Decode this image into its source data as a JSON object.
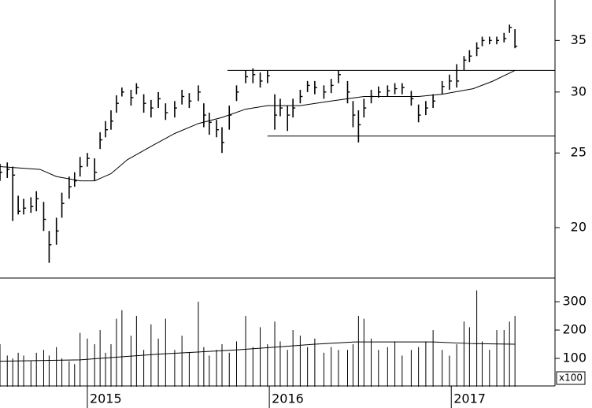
{
  "chart_data": {
    "type": "ohlc",
    "x": [
      2014.52,
      2014.56,
      2014.59,
      2014.62,
      2014.65,
      2014.69,
      2014.72,
      2014.76,
      2014.79,
      2014.83,
      2014.86,
      2014.9,
      2014.93,
      2014.96,
      2015.0,
      2015.04,
      2015.07,
      2015.1,
      2015.13,
      2015.16,
      2015.19,
      2015.24,
      2015.27,
      2015.31,
      2015.35,
      2015.39,
      2015.43,
      2015.48,
      2015.52,
      2015.56,
      2015.61,
      2015.64,
      2015.67,
      2015.71,
      2015.74,
      2015.78,
      2015.82,
      2015.87,
      2015.91,
      2015.95,
      2015.99,
      2016.03,
      2016.06,
      2016.1,
      2016.13,
      2016.17,
      2016.21,
      2016.25,
      2016.3,
      2016.34,
      2016.38,
      2016.43,
      2016.46,
      2016.49,
      2016.52,
      2016.56,
      2016.6,
      2016.65,
      2016.69,
      2016.73,
      2016.78,
      2016.82,
      2016.86,
      2016.9,
      2016.95,
      2016.99,
      2017.03,
      2017.07,
      2017.1,
      2017.14,
      2017.17,
      2017.21,
      2017.25,
      2017.29,
      2017.32,
      2017.35
    ],
    "high": [
      24.2,
      24.3,
      24.0,
      22.0,
      21.8,
      21.9,
      22.3,
      21.6,
      19.8,
      20.6,
      22.2,
      23.3,
      23.6,
      24.7,
      25.0,
      24.6,
      26.6,
      27.5,
      28.4,
      29.7,
      30.4,
      30.2,
      30.8,
      29.8,
      29.3,
      30.0,
      29.0,
      29.2,
      30.2,
      29.9,
      30.6,
      29.0,
      28.2,
      27.6,
      27.0,
      28.8,
      30.6,
      32.0,
      32.2,
      31.8,
      32.0,
      29.8,
      29.4,
      28.8,
      29.4,
      30.2,
      31.0,
      31.0,
      30.6,
      31.2,
      32.0,
      31.0,
      29.2,
      28.4,
      29.4,
      30.2,
      30.5,
      30.6,
      30.8,
      30.8,
      30.1,
      28.9,
      29.2,
      29.8,
      31.0,
      31.6,
      32.6,
      33.4,
      34.0,
      34.8,
      35.4,
      35.4,
      35.4,
      35.8,
      36.7,
      36.2
    ],
    "low": [
      23.0,
      23.2,
      20.4,
      20.8,
      20.8,
      20.9,
      21.0,
      19.8,
      18.0,
      19.0,
      20.6,
      21.8,
      22.6,
      23.3,
      24.0,
      23.0,
      25.3,
      26.2,
      26.8,
      28.2,
      29.6,
      28.8,
      29.8,
      28.2,
      27.8,
      28.6,
      27.6,
      27.8,
      28.9,
      28.6,
      29.2,
      27.0,
      26.4,
      26.2,
      25.0,
      26.8,
      29.2,
      30.8,
      30.8,
      30.4,
      30.8,
      26.8,
      27.9,
      26.7,
      27.8,
      29.0,
      30.0,
      29.8,
      29.4,
      29.9,
      30.8,
      29.0,
      27.0,
      25.8,
      27.8,
      29.0,
      29.5,
      29.6,
      29.8,
      29.8,
      28.8,
      27.4,
      28.0,
      28.6,
      29.8,
      30.2,
      30.4,
      32.0,
      32.8,
      33.4,
      34.4,
      34.6,
      34.6,
      34.8,
      35.8,
      34.2
    ],
    "close": [
      23.6,
      23.8,
      23.4,
      21.0,
      21.2,
      21.3,
      21.8,
      20.5,
      19.0,
      19.8,
      21.5,
      22.6,
      23.0,
      24.0,
      24.6,
      23.6,
      26.0,
      26.8,
      27.5,
      29.0,
      30.0,
      29.5,
      30.4,
      29.0,
      28.6,
      29.4,
      28.2,
      28.6,
      29.6,
      29.2,
      30.0,
      28.0,
      27.4,
      26.8,
      25.8,
      28.0,
      30.0,
      31.4,
      31.6,
      31.0,
      31.5,
      28.0,
      28.6,
      28.0,
      28.6,
      29.6,
      30.6,
      30.4,
      30.0,
      30.6,
      31.6,
      30.0,
      28.0,
      27.2,
      28.6,
      29.6,
      30.0,
      30.1,
      30.3,
      30.4,
      29.4,
      28.0,
      28.6,
      29.2,
      30.5,
      31.0,
      31.0,
      33.0,
      33.4,
      34.2,
      35.0,
      35.0,
      35.0,
      35.2,
      36.4,
      34.4
    ],
    "color": "#000000",
    "moving_average": {
      "color": "#000000",
      "x": [
        2014.52,
        2014.74,
        2014.83,
        2014.96,
        2015.04,
        2015.13,
        2015.22,
        2015.35,
        2015.48,
        2015.61,
        2015.74,
        2015.87,
        2015.99,
        2016.17,
        2016.34,
        2016.52,
        2016.82,
        2016.95,
        2017.12,
        2017.23,
        2017.35
      ],
      "values": [
        24.0,
        23.8,
        23.3,
        23.0,
        23.0,
        23.5,
        24.5,
        25.5,
        26.5,
        27.3,
        27.8,
        28.5,
        28.8,
        28.8,
        29.2,
        29.6,
        29.6,
        29.8,
        30.3,
        31.0,
        32.0
      ]
    },
    "horizontal_lines": [
      {
        "value": 32,
        "x": [
          2015.77,
          2017.57
        ]
      },
      {
        "value": 26.3,
        "x": [
          2015.99,
          2017.57
        ]
      }
    ],
    "ylim": [
      17.2,
      39.5
    ],
    "yticks": [
      20,
      25,
      30,
      35
    ],
    "log_scale": true,
    "xlim": [
      2014.52,
      2017.57
    ],
    "xticks": [
      2015,
      2016,
      2017
    ],
    "volume": {
      "values": [
        150,
        110,
        100,
        120,
        110,
        90,
        120,
        130,
        110,
        140,
        100,
        90,
        80,
        190,
        170,
        150,
        200,
        120,
        150,
        240,
        270,
        180,
        250,
        130,
        220,
        170,
        240,
        130,
        180,
        120,
        300,
        140,
        110,
        130,
        150,
        120,
        160,
        250,
        140,
        210,
        150,
        230,
        160,
        130,
        200,
        180,
        140,
        170,
        120,
        140,
        130,
        130,
        150,
        250,
        240,
        170,
        130,
        140,
        160,
        110,
        130,
        140,
        160,
        200,
        130,
        110,
        150,
        230,
        210,
        340,
        160,
        130,
        200,
        200,
        230,
        250
      ],
      "moving_average": {
        "x": [
          2014.52,
          2014.96,
          2015.39,
          2015.82,
          2016.25,
          2016.47,
          2016.9,
          2017.12,
          2017.35
        ],
        "values": [
          90,
          95,
          115,
          130,
          150,
          158,
          158,
          152,
          150
        ]
      },
      "ylim": [
        0,
        378
      ],
      "yticks": [
        100,
        200,
        300
      ],
      "unit_label": "x100"
    }
  }
}
